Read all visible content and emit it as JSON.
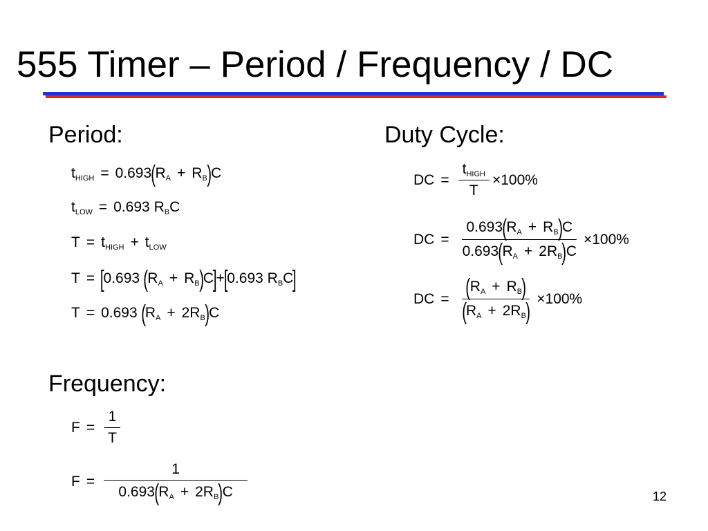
{
  "slide": {
    "title": "555 Timer – Period / Frequency / DC",
    "page_number": "12",
    "colors": {
      "rule_blue": "#2b2fd0",
      "rule_red": "#d42a2a"
    }
  },
  "period": {
    "heading": "Period:",
    "eq1": {
      "lhs": "t",
      "lhs_sub": "HIGH",
      "coef": "0.693",
      "ra": "R",
      "ra_sub": "A",
      "rb": "R",
      "rb_sub": "B",
      "c": "C"
    },
    "eq2": {
      "lhs": "t",
      "lhs_sub": "LOW",
      "coef": "0.693",
      "rb": "R",
      "rb_sub": "B",
      "c": "C"
    },
    "eq3": {
      "lhs": "T",
      "t1": "t",
      "t1_sub": "HIGH",
      "t2": "t",
      "t2_sub": "LOW"
    },
    "eq4": {
      "lhs": "T",
      "coef1": "0.693",
      "ra": "R",
      "ra_sub": "A",
      "rb": "R",
      "rb_sub": "B",
      "c1": "C",
      "coef2": "0.693",
      "rb2": "R",
      "rb2_sub": "B",
      "c2": "C"
    },
    "eq5": {
      "lhs": "T",
      "coef": "0.693",
      "ra": "R",
      "ra_sub": "A",
      "rb": "2R",
      "rb_sub": "B",
      "c": "C"
    }
  },
  "frequency": {
    "heading": "Frequency:",
    "eq1": {
      "lhs": "F",
      "num": "1",
      "den": "T"
    },
    "eq2": {
      "lhs": "F",
      "num": "1",
      "coef": "0.693",
      "ra": "R",
      "ra_sub": "A",
      "rb": "2R",
      "rb_sub": "B",
      "c": "C"
    }
  },
  "duty_cycle": {
    "heading": "Duty Cycle:",
    "eq1": {
      "lhs": "DC",
      "num": "t",
      "num_sub": "HIGH",
      "den": "T",
      "pct": "100%"
    },
    "eq2": {
      "lhs": "DC",
      "num_coef": "0.693",
      "num_ra": "R",
      "num_ra_sub": "A",
      "num_rb": "R",
      "num_rb_sub": "B",
      "num_c": "C",
      "den_coef": "0.693",
      "den_ra": "R",
      "den_ra_sub": "A",
      "den_rb": "2R",
      "den_rb_sub": "B",
      "den_c": "C",
      "pct": "100%"
    },
    "eq3": {
      "lhs": "DC",
      "num_ra": "R",
      "num_ra_sub": "A",
      "num_rb": "R",
      "num_rb_sub": "B",
      "den_ra": "R",
      "den_ra_sub": "A",
      "den_rb": "2R",
      "den_rb_sub": "B",
      "pct": "100%"
    }
  }
}
